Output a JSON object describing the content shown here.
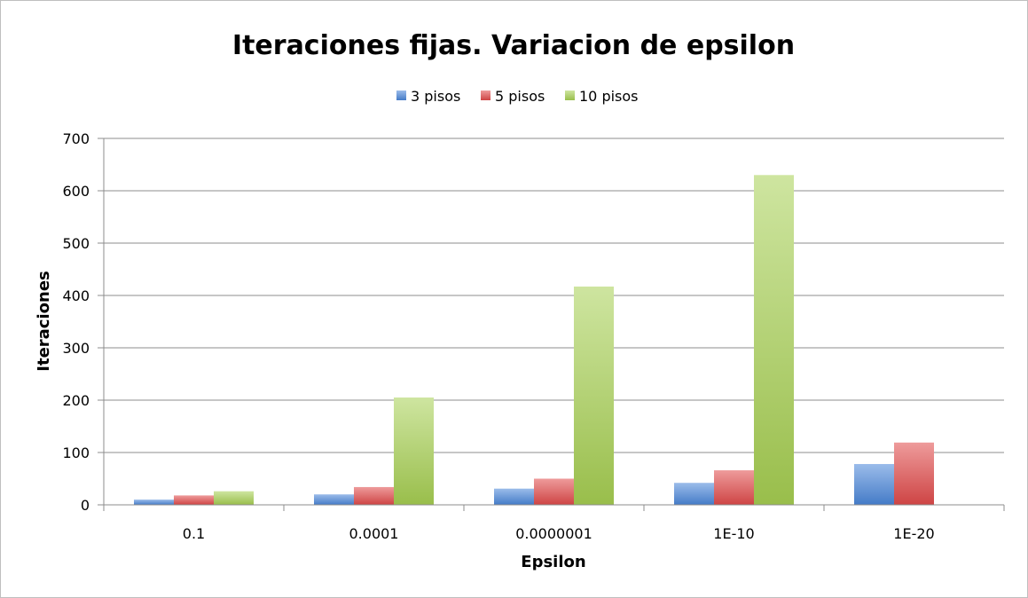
{
  "chart_data": {
    "type": "bar",
    "title": "Iteraciones fijas. Variacion de epsilon",
    "xlabel": "Epsilon",
    "ylabel": "Iteraciones",
    "ylim": [
      0,
      700
    ],
    "yticks": [
      0,
      100,
      200,
      300,
      400,
      500,
      600,
      700
    ],
    "grid": true,
    "legend_position": "top",
    "categories": [
      "0.1",
      "0.0001",
      "0.0000001",
      "1E-10",
      "1E-20"
    ],
    "series": [
      {
        "name": "3 pisos",
        "color": "#4a86d8",
        "values": [
          10,
          20,
          31,
          42,
          78
        ]
      },
      {
        "name": "5 pisos",
        "color": "#e04a4a",
        "values": [
          18,
          34,
          50,
          66,
          119
        ]
      },
      {
        "name": "10 pisos",
        "color": "#a6cf52",
        "values": [
          26,
          205,
          417,
          630,
          null
        ]
      }
    ]
  }
}
